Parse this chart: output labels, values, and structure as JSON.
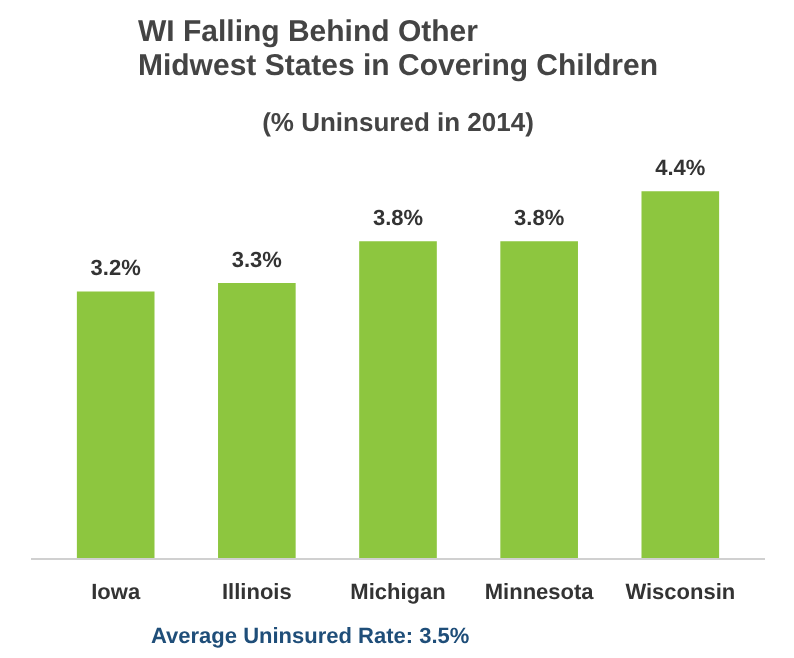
{
  "chart_data": {
    "type": "bar",
    "title": "WI Falling Behind Other\nMidwest States in Covering Children",
    "subtitle": "(% Uninsured in 2014)",
    "categories": [
      "Iowa",
      "Illinois",
      "Michigan",
      "Minnesota",
      "Wisconsin"
    ],
    "values": [
      3.2,
      3.3,
      3.8,
      3.8,
      4.4
    ],
    "color": "#8dc63f",
    "value_labels": [
      "3.2%",
      "3.3%",
      "3.8%",
      "3.8%",
      "4.4%"
    ],
    "annotations": [
      "Average Uninsured Rate: 3.5%"
    ]
  }
}
